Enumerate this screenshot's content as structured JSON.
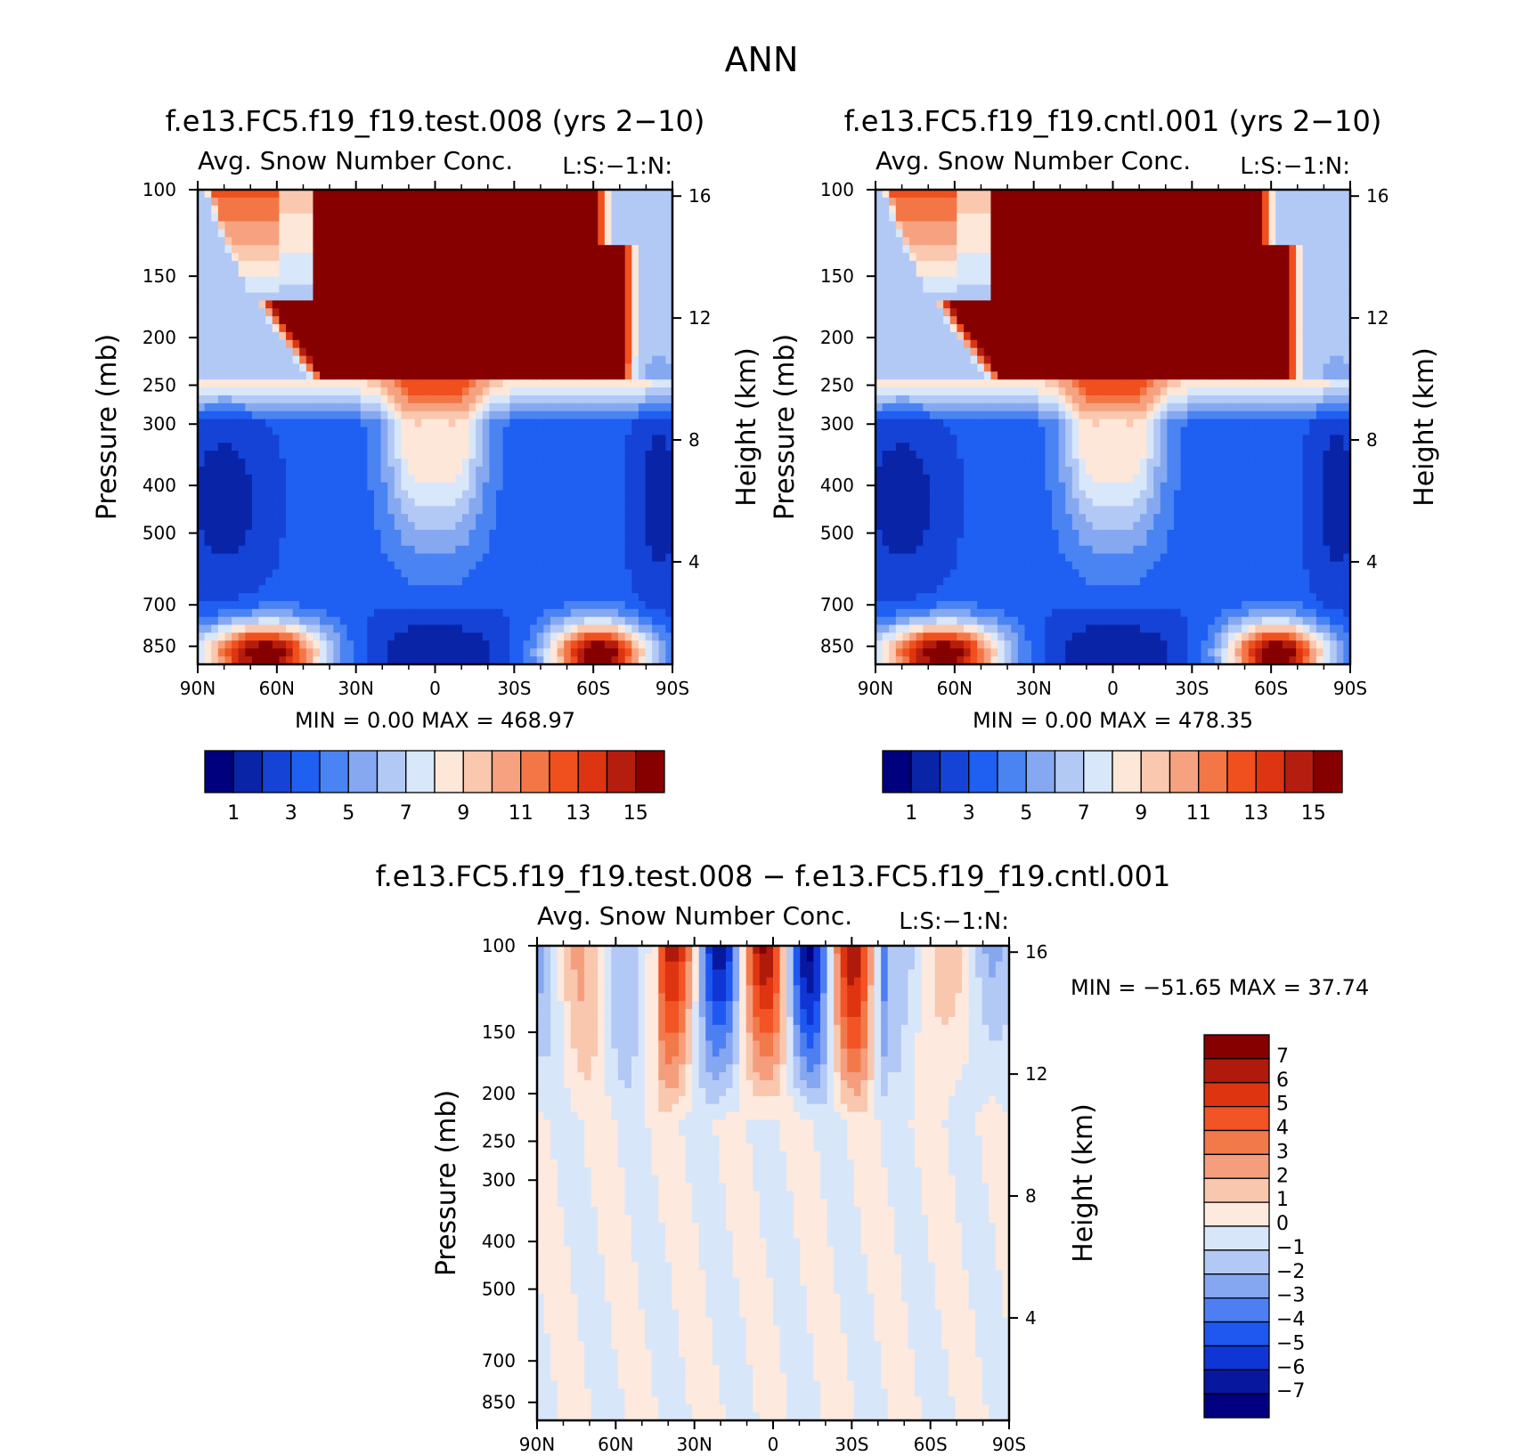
{
  "page_title": "ANN",
  "chart_data": [
    {
      "type": "heatmap",
      "title": "f.e13.FC5.f19_f19.test.008 (yrs 2-10)",
      "subtitle": "Avg. Snow Number Conc.",
      "units_label": "L:S:-1:N:",
      "xlabel": "",
      "ylabel": "Pressure (mb)",
      "y2label": "Height (km)",
      "x_ticks": [
        "90N",
        "60N",
        "30N",
        "0",
        "30S",
        "60S",
        "90S"
      ],
      "y_ticks": [
        100,
        150,
        200,
        250,
        300,
        400,
        500,
        700,
        850
      ],
      "y2_ticks": [
        16,
        12,
        8,
        4
      ],
      "ylim": [
        100,
        925
      ],
      "y_scale": "log",
      "min_max_text": "MIN =     0.00   MAX =  468.97",
      "min": 0.0,
      "max": 468.97,
      "colorbar_labels": [
        "1",
        "3",
        "5",
        "7",
        "9",
        "11",
        "13",
        "15"
      ],
      "colorbar_orientation": "horizontal"
    },
    {
      "type": "heatmap",
      "title": "f.e13.FC5.f19_f19.cntl.001 (yrs 2-10)",
      "subtitle": "Avg. Snow Number Conc.",
      "units_label": "L:S:-1:N:",
      "xlabel": "",
      "ylabel": "Pressure (mb)",
      "y2label": "Height (km)",
      "x_ticks": [
        "90N",
        "60N",
        "30N",
        "0",
        "30S",
        "60S",
        "90S"
      ],
      "y_ticks": [
        100,
        150,
        200,
        250,
        300,
        400,
        500,
        700,
        850
      ],
      "y2_ticks": [
        16,
        12,
        8,
        4
      ],
      "ylim": [
        100,
        925
      ],
      "y_scale": "log",
      "min_max_text": "MIN =     0.00   MAX =  478.35",
      "min": 0.0,
      "max": 478.35,
      "colorbar_labels": [
        "1",
        "3",
        "5",
        "7",
        "9",
        "11",
        "13",
        "15"
      ],
      "colorbar_orientation": "horizontal"
    },
    {
      "type": "heatmap",
      "title": "f.e13.FC5.f19_f19.test.008 - f.e13.FC5.f19_f19.cntl.001",
      "subtitle": "Avg. Snow Number Conc.",
      "units_label": "L:S:-1:N:",
      "xlabel": "",
      "ylabel": "Pressure (mb)",
      "y2label": "Height (km)",
      "x_ticks": [
        "90N",
        "60N",
        "30N",
        "0",
        "30S",
        "60S",
        "90S"
      ],
      "y_ticks": [
        100,
        150,
        200,
        250,
        300,
        400,
        500,
        700,
        850
      ],
      "y2_ticks": [
        16,
        12,
        8,
        4
      ],
      "ylim": [
        100,
        925
      ],
      "y_scale": "log",
      "min_max_text": "MIN = -51.65   MAX =   37.74",
      "min": -51.65,
      "max": 37.74,
      "colorbar_labels": [
        "7",
        "6",
        "5",
        "4",
        "3",
        "2",
        "1",
        "0",
        "-1",
        "-2",
        "-3",
        "-4",
        "-5",
        "-6",
        "-7"
      ],
      "colorbar_orientation": "vertical"
    }
  ],
  "colors": {
    "seq": [
      "#00007f",
      "#0a24a8",
      "#1443d6",
      "#1f5ff2",
      "#4a83f2",
      "#85a8f0",
      "#b2c9f5",
      "#d9e7fa",
      "#fde7d8",
      "#f9c8ae",
      "#f6a281",
      "#f37746",
      "#f0501e",
      "#dd3411",
      "#b51d0e",
      "#870000"
    ],
    "diff": [
      "#870000",
      "#b01a0a",
      "#de3410",
      "#f25425",
      "#f2794a",
      "#f59e7e",
      "#f8c7ae",
      "#fde9dd",
      "#d8e6fa",
      "#b2c8f5",
      "#85a6f0",
      "#4d7ff2",
      "#1f58f0",
      "#1035d5",
      "#08189e",
      "#000080"
    ]
  }
}
